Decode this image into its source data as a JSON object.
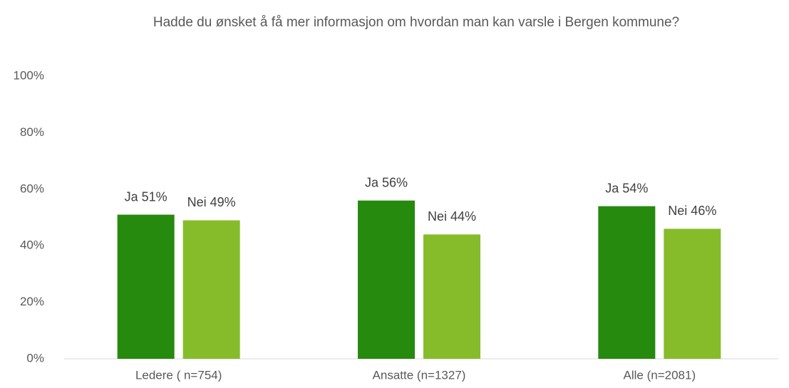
{
  "chart_data": {
    "type": "bar",
    "title": "Hadde du ønsket å få mer informasjon om hvordan man kan varsle i Bergen kommune?",
    "categories": [
      "Ledere ( n=754)",
      "Ansatte (n=1327)",
      "Alle (n=2081)"
    ],
    "series": [
      {
        "name": "Ja",
        "color": "#268a0e",
        "values": [
          51,
          56,
          54
        ],
        "value_labels": [
          "Ja 51%",
          "Ja 56%",
          "Ja 54%"
        ]
      },
      {
        "name": "Nei",
        "color": "#86bc2a",
        "values": [
          49,
          44,
          46
        ],
        "value_labels": [
          "Nei 49%",
          "Nei 44%",
          "Nei 46%"
        ]
      }
    ],
    "ylim": [
      0,
      100
    ],
    "yticks": [
      {
        "value": 0,
        "label": "0%"
      },
      {
        "value": 20,
        "label": "20%"
      },
      {
        "value": 40,
        "label": "40%"
      },
      {
        "value": 60,
        "label": "60%"
      },
      {
        "value": 80,
        "label": "80%"
      },
      {
        "value": 100,
        "label": "100%"
      }
    ],
    "grid": false
  }
}
